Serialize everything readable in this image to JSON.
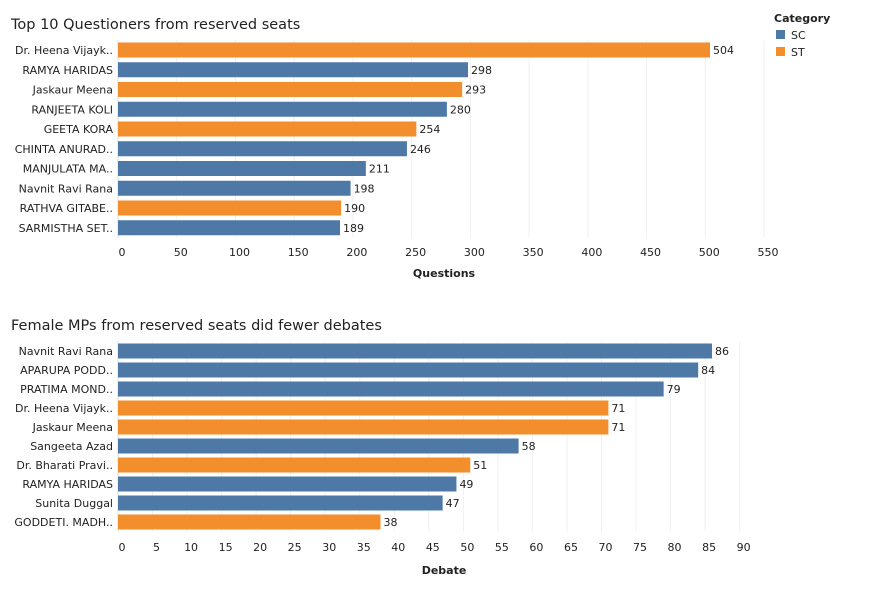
{
  "colors": {
    "SC": "#4e79a7",
    "ST": "#f28e2b"
  },
  "legend": {
    "title": "Category",
    "items": [
      {
        "name": "SC",
        "color": "#4e79a7"
      },
      {
        "name": "ST",
        "color": "#f28e2b"
      }
    ]
  },
  "chart_data": [
    {
      "type": "bar",
      "orientation": "horizontal",
      "title": "Top 10 Questioners from reserved seats",
      "xlabel": "Questions",
      "ylabel": "",
      "xlim": [
        0,
        560
      ],
      "ticks": [
        0,
        50,
        100,
        150,
        200,
        250,
        300,
        350,
        400,
        450,
        500,
        550
      ],
      "categories": [
        "Dr. Heena Vijayk..",
        "RAMYA HARIDAS",
        "Jaskaur Meena",
        "RANJEETA KOLI",
        "GEETA KORA",
        "CHINTA ANURAD..",
        "MANJULATA MA..",
        "Navnit Ravi Rana",
        "RATHVA GITABE..",
        "SARMISTHA SET.."
      ],
      "values": [
        504,
        298,
        293,
        280,
        254,
        246,
        211,
        198,
        190,
        189
      ],
      "category_group": [
        "ST",
        "SC",
        "ST",
        "SC",
        "ST",
        "SC",
        "SC",
        "SC",
        "ST",
        "SC"
      ]
    },
    {
      "type": "bar",
      "orientation": "horizontal",
      "title": "Female MPs from reserved seats did fewer debates",
      "xlabel": "Debate",
      "ylabel": "",
      "xlim": [
        0,
        94
      ],
      "ticks": [
        0,
        5,
        10,
        15,
        20,
        25,
        30,
        35,
        40,
        45,
        50,
        55,
        60,
        65,
        70,
        75,
        80,
        85,
        90
      ],
      "categories": [
        "Navnit Ravi Rana",
        "APARUPA PODD..",
        "PRATIMA MOND..",
        "Dr. Heena Vijayk..",
        "Jaskaur Meena",
        "Sangeeta Azad",
        "Dr. Bharati Pravi..",
        "RAMYA HARIDAS",
        "Sunita Duggal",
        "GODDETI. MADH.."
      ],
      "values": [
        86,
        84,
        79,
        71,
        71,
        58,
        51,
        49,
        47,
        38
      ],
      "category_group": [
        "SC",
        "SC",
        "SC",
        "ST",
        "ST",
        "SC",
        "ST",
        "SC",
        "SC",
        "ST"
      ]
    }
  ]
}
